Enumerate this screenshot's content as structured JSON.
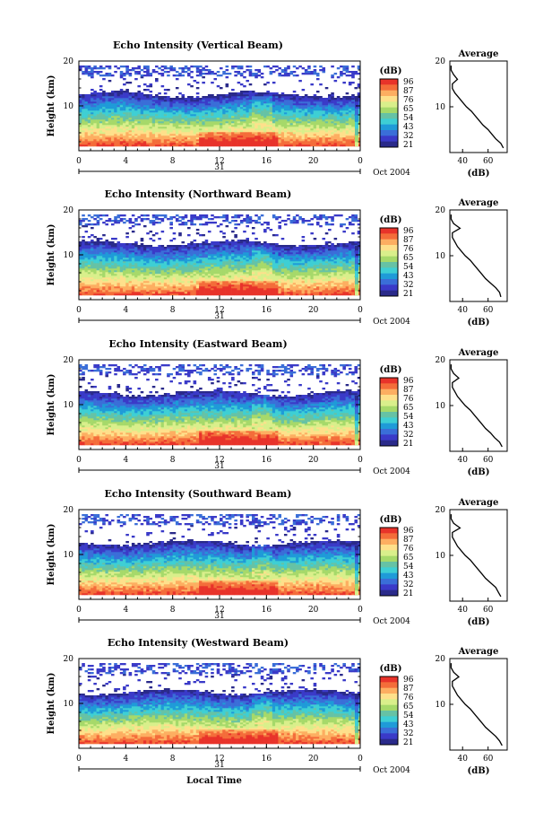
{
  "chart_data": [
    {
      "type": "heatmap",
      "title": "Echo Intensity (Vertical Beam)",
      "ylabel": "Height (km)",
      "x_ticks": [
        "0",
        "4",
        "8",
        "12",
        "16",
        "20",
        "0"
      ],
      "y_ticks": [
        "20",
        "10"
      ],
      "day_label": "31",
      "date_label": "Oct 2004",
      "xlim": [
        0,
        24
      ],
      "ylim": [
        0,
        20
      ],
      "colorbar": {
        "title": "(dB)",
        "ticks": [
          "96",
          "87",
          "76",
          "65",
          "54",
          "43",
          "32",
          "21"
        ],
        "colors": [
          "#e8332a",
          "#f46d3a",
          "#fdae61",
          "#fee08b",
          "#d9ef8b",
          "#a6d96a",
          "#66c2a5",
          "#3ecfd4",
          "#1f9bd8",
          "#3a6ed8",
          "#3a3ac8",
          "#2a2a8a"
        ]
      },
      "profile": {
        "title": "Average",
        "xlabel": "(dB)",
        "x_ticks": [
          "40",
          "60"
        ],
        "y_ticks": [
          "20",
          "10"
        ],
        "xlim": [
          30,
          75
        ],
        "height_km": [
          1,
          2,
          3,
          4,
          5,
          6,
          7,
          8,
          9,
          10,
          11,
          12,
          13,
          14,
          15,
          16,
          17,
          18,
          19
        ],
        "db": [
          72,
          70,
          66,
          63,
          60,
          56,
          53,
          50,
          47,
          43,
          40,
          37,
          34,
          32,
          32,
          36,
          33,
          31,
          31
        ]
      }
    },
    {
      "type": "heatmap",
      "title": "Echo Intensity (Northward Beam)",
      "ylabel": "Height (km)",
      "x_ticks": [
        "0",
        "4",
        "8",
        "12",
        "16",
        "20",
        "0"
      ],
      "y_ticks": [
        "20",
        "10"
      ],
      "day_label": "31",
      "date_label": "Oct 2004",
      "xlim": [
        0,
        24
      ],
      "ylim": [
        0,
        20
      ],
      "colorbar": {
        "title": "(dB)",
        "ticks": [
          "96",
          "87",
          "76",
          "65",
          "54",
          "43",
          "32",
          "21"
        ],
        "colors": [
          "#e8332a",
          "#f46d3a",
          "#fdae61",
          "#fee08b",
          "#d9ef8b",
          "#a6d96a",
          "#66c2a5",
          "#3ecfd4",
          "#1f9bd8",
          "#3a6ed8",
          "#3a3ac8",
          "#2a2a8a"
        ]
      },
      "profile": {
        "title": "Average",
        "xlabel": "(dB)",
        "x_ticks": [
          "40",
          "60"
        ],
        "y_ticks": [
          "20",
          "10"
        ],
        "xlim": [
          30,
          75
        ],
        "height_km": [
          1,
          2,
          3,
          4,
          5,
          6,
          7,
          8,
          9,
          10,
          11,
          12,
          13,
          14,
          15,
          16,
          17,
          18,
          19
        ],
        "db": [
          70,
          69,
          66,
          62,
          58,
          55,
          52,
          49,
          46,
          42,
          39,
          36,
          34,
          32,
          32,
          38,
          33,
          31,
          31
        ]
      }
    },
    {
      "type": "heatmap",
      "title": "Echo Intensity (Eastward Beam)",
      "ylabel": "Height (km)",
      "x_ticks": [
        "0",
        "4",
        "8",
        "12",
        "16",
        "20",
        "0"
      ],
      "y_ticks": [
        "20",
        "10"
      ],
      "day_label": "31",
      "date_label": "Oct 2004",
      "xlim": [
        0,
        24
      ],
      "ylim": [
        0,
        20
      ],
      "colorbar": {
        "title": "(dB)",
        "ticks": [
          "96",
          "87",
          "76",
          "65",
          "54",
          "43",
          "32",
          "21"
        ],
        "colors": [
          "#e8332a",
          "#f46d3a",
          "#fdae61",
          "#fee08b",
          "#d9ef8b",
          "#a6d96a",
          "#66c2a5",
          "#3ecfd4",
          "#1f9bd8",
          "#3a6ed8",
          "#3a3ac8",
          "#2a2a8a"
        ]
      },
      "profile": {
        "title": "Average",
        "xlabel": "(dB)",
        "x_ticks": [
          "40",
          "60"
        ],
        "y_ticks": [
          "20",
          "10"
        ],
        "xlim": [
          30,
          75
        ],
        "height_km": [
          1,
          2,
          3,
          4,
          5,
          6,
          7,
          8,
          9,
          10,
          11,
          12,
          13,
          14,
          15,
          16,
          17,
          18,
          19
        ],
        "db": [
          71,
          69,
          65,
          62,
          58,
          55,
          52,
          49,
          46,
          42,
          39,
          36,
          34,
          32,
          32,
          37,
          33,
          31,
          31
        ]
      }
    },
    {
      "type": "heatmap",
      "title": "Echo Intensity (Southward Beam)",
      "ylabel": "Height (km)",
      "x_ticks": [
        "0",
        "4",
        "8",
        "12",
        "16",
        "20",
        "0"
      ],
      "y_ticks": [
        "20",
        "10"
      ],
      "day_label": "31",
      "date_label": "Oct 2004",
      "xlim": [
        0,
        24
      ],
      "ylim": [
        0,
        20
      ],
      "colorbar": {
        "title": "(dB)",
        "ticks": [
          "96",
          "87",
          "76",
          "65",
          "54",
          "43",
          "32",
          "21"
        ],
        "colors": [
          "#e8332a",
          "#f46d3a",
          "#fdae61",
          "#fee08b",
          "#d9ef8b",
          "#a6d96a",
          "#66c2a5",
          "#3ecfd4",
          "#1f9bd8",
          "#3a6ed8",
          "#3a3ac8",
          "#2a2a8a"
        ]
      },
      "profile": {
        "title": "Average",
        "xlabel": "(dB)",
        "x_ticks": [
          "40",
          "60"
        ],
        "y_ticks": [
          "20",
          "10"
        ],
        "xlim": [
          30,
          75
        ],
        "height_km": [
          1,
          2,
          3,
          4,
          5,
          6,
          7,
          8,
          9,
          10,
          11,
          12,
          13,
          14,
          15,
          16,
          17,
          18,
          19
        ],
        "db": [
          70,
          68,
          66,
          62,
          58,
          55,
          52,
          49,
          46,
          42,
          39,
          36,
          34,
          32,
          32,
          38,
          33,
          31,
          31
        ]
      }
    },
    {
      "type": "heatmap",
      "title": "Echo Intensity (Westward Beam)",
      "ylabel": "Height (km)",
      "x_ticks": [
        "0",
        "4",
        "8",
        "12",
        "16",
        "20",
        "0"
      ],
      "y_ticks": [
        "20",
        "10"
      ],
      "day_label": "31",
      "date_label": "Oct 2004",
      "xlabel": "Local Time",
      "xlim": [
        0,
        24
      ],
      "ylim": [
        0,
        20
      ],
      "colorbar": {
        "title": "(dB)",
        "ticks": [
          "96",
          "87",
          "76",
          "65",
          "54",
          "43",
          "32",
          "21"
        ],
        "colors": [
          "#e8332a",
          "#f46d3a",
          "#fdae61",
          "#fee08b",
          "#d9ef8b",
          "#a6d96a",
          "#66c2a5",
          "#3ecfd4",
          "#1f9bd8",
          "#3a6ed8",
          "#3a3ac8",
          "#2a2a8a"
        ]
      },
      "profile": {
        "title": "Average",
        "xlabel": "(dB)",
        "x_ticks": [
          "40",
          "60"
        ],
        "y_ticks": [
          "20",
          "10"
        ],
        "xlim": [
          30,
          75
        ],
        "height_km": [
          1,
          2,
          3,
          4,
          5,
          6,
          7,
          8,
          9,
          10,
          11,
          12,
          13,
          14,
          15,
          16,
          17,
          18,
          19
        ],
        "db": [
          71,
          69,
          66,
          62,
          58,
          55,
          52,
          49,
          46,
          42,
          39,
          36,
          34,
          32,
          32,
          37,
          33,
          31,
          31
        ]
      }
    }
  ]
}
